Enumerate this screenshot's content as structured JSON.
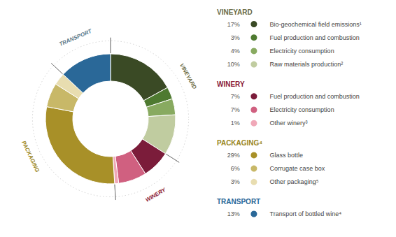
{
  "chart_data": {
    "type": "pie",
    "categories": [
      "Bio-geochemical field emissions¹",
      "Fuel production and combustion",
      "Electricity consumption",
      "Raw materials production²",
      "Fuel production and combustion",
      "Electricity consumption",
      "Other winery³",
      "Glass bottle",
      "Corrugate case box",
      "Other packaging⁵",
      "Transport of bottled wine⁴"
    ],
    "values": [
      17,
      3,
      4,
      10,
      7,
      7,
      1,
      29,
      6,
      3,
      13
    ],
    "value_labels": [
      "17%",
      "3%",
      "4%",
      "10%",
      "7%",
      "7%",
      "1%",
      "29%",
      "6%",
      "3%",
      "13%"
    ],
    "colors": [
      "#3a4a25",
      "#4e7a30",
      "#88aa60",
      "#c0cca0",
      "#7b1c3a",
      "#d06080",
      "#f0a8b8",
      "#a89028",
      "#c8b868",
      "#e8ddb0",
      "#2a6898"
    ],
    "slice_groups": [
      "VINEYARD",
      "VINEYARD",
      "VINEYARD",
      "VINEYARD",
      "WINERY",
      "WINERY",
      "WINERY",
      "PACKAGING",
      "PACKAGING",
      "PACKAGING",
      "TRANSPORT"
    ],
    "groups": [
      {
        "label": "VINEYARD",
        "color": "#6b6b45",
        "header": "VINEYARD",
        "header_color": "#6b6b45"
      },
      {
        "label": "WINERY",
        "color": "#8b1a38",
        "header": "WINERY",
        "header_color": "#8b1a38"
      },
      {
        "label": "PACKAGING",
        "color": "#9a8520",
        "header": "PACKAGING⁴",
        "header_color": "#9a8520"
      },
      {
        "label": "TRANSPORT",
        "color": "#5a7a8a",
        "header": "TRANSPORT",
        "header_color": "#2a6898"
      }
    ]
  }
}
